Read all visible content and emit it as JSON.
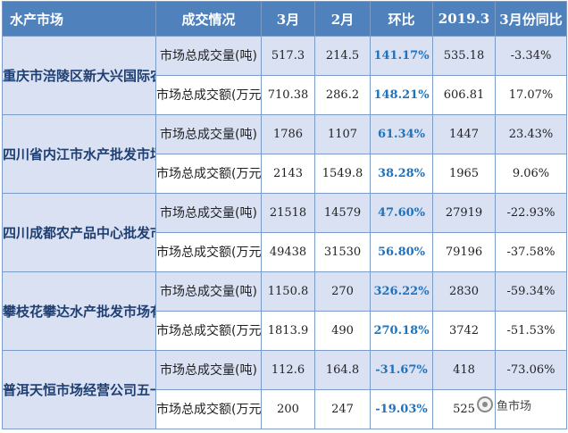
{
  "table": {
    "headers": [
      "水产市场",
      "成交情况",
      "3月",
      "2月",
      "环比",
      "2019.3",
      "3月份同比"
    ],
    "markets": [
      {
        "name": "重庆市涪陵区新大兴国际农产品批发市场",
        "rows": [
          {
            "metric": "市场总成交量(吨)",
            "mar": "517.3",
            "feb": "214.5",
            "mom": "141.17%",
            "y2019": "535.18",
            "yoy": "-3.34%"
          },
          {
            "metric": "市场总成交额(万元)",
            "mar": "710.38",
            "feb": "286.2",
            "mom": "148.21%",
            "y2019": "606.81",
            "yoy": "17.07%"
          }
        ]
      },
      {
        "name": "四川省内江市水产批发市场",
        "rows": [
          {
            "metric": "市场总成交量(吨)",
            "mar": "1786",
            "feb": "1107",
            "mom": "61.34%",
            "y2019": "1447",
            "yoy": "23.43%"
          },
          {
            "metric": "市场总成交额(万元)",
            "mar": "2143",
            "feb": "1549.8",
            "mom": "38.28%",
            "y2019": "1965",
            "yoy": "9.06%"
          }
        ]
      },
      {
        "name": "四川成都农产品中心批发市水产分场",
        "rows": [
          {
            "metric": "市场总成交量(吨)",
            "mar": "21518",
            "feb": "14579",
            "mom": "47.60%",
            "y2019": "27919",
            "yoy": "-22.93%"
          },
          {
            "metric": "市场总成交额(万元)",
            "mar": "49438",
            "feb": "31530",
            "mom": "56.80%",
            "y2019": "79196",
            "yoy": "-37.58%"
          }
        ]
      },
      {
        "name": "攀枝花攀达水产批发市场有限公司",
        "rows": [
          {
            "metric": "市场总成交量(吨)",
            "mar": "1150.8",
            "feb": "270",
            "mom": "326.22%",
            "y2019": "2830",
            "yoy": "-59.34%"
          },
          {
            "metric": "市场总成交额(万元)",
            "mar": "1813.9",
            "feb": "490",
            "mom": "270.18%",
            "y2019": "3742",
            "yoy": "-51.53%"
          }
        ]
      },
      {
        "name": "普洱天恒市场经营公司五一市场",
        "rows": [
          {
            "metric": "市场总成交量(吨)",
            "mar": "112.6",
            "feb": "164.8",
            "mom": "-31.67%",
            "y2019": "418",
            "yoy": "-73.06%"
          },
          {
            "metric": "市场总成交额(万元)",
            "mar": "200",
            "feb": "247",
            "mom": "-19.03%",
            "y2019": "525",
            "yoy": ""
          }
        ]
      }
    ]
  },
  "watermark": {
    "text": "鱼市场",
    "icon": "wechat-icon"
  },
  "colors": {
    "header_bg": "#4f81bd",
    "band_bg": "#d9e1f2",
    "mom_text": "#1e73be",
    "market_text": "#1f3f73",
    "border": "#7a9cc6"
  }
}
